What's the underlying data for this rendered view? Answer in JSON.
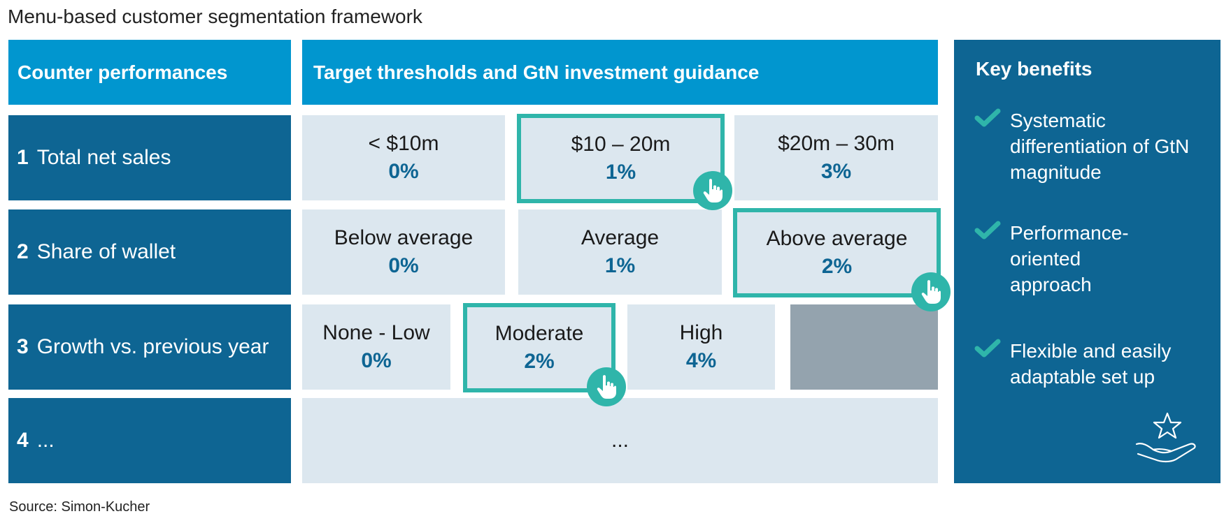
{
  "title": "Menu-based customer segmentation framework",
  "source": "Source: Simon-Kucher",
  "colors": {
    "header_blue": "#0196cf",
    "dark_blue": "#0e6593",
    "cell_bg": "#dce7ef",
    "teal_highlight": "#2fb5aa",
    "empty_cell": "#94a3ae"
  },
  "headers": {
    "left": "Counter performances",
    "middle": "Target thresholds and GtN investment guidance"
  },
  "rows": [
    {
      "number": "1",
      "label": "Total net sales",
      "options": [
        {
          "label": "< $10m",
          "pct": "0%",
          "selected": false
        },
        {
          "label": "$10 – 20m",
          "pct": "1%",
          "selected": true
        },
        {
          "label": "$20m – 30m",
          "pct": "3%",
          "selected": false
        }
      ]
    },
    {
      "number": "2",
      "label": "Share of wallet",
      "options": [
        {
          "label": "Below average",
          "pct": "0%",
          "selected": false
        },
        {
          "label": "Average",
          "pct": "1%",
          "selected": false
        },
        {
          "label": "Above average",
          "pct": "2%",
          "selected": true
        }
      ]
    },
    {
      "number": "3",
      "label": "Growth vs. previous year",
      "options": [
        {
          "label": "None - Low",
          "pct": "0%",
          "selected": false
        },
        {
          "label": "Moderate",
          "pct": "2%",
          "selected": true
        },
        {
          "label": "High",
          "pct": "4%",
          "selected": false
        }
      ]
    },
    {
      "number": "4",
      "label": "...",
      "options": [
        {
          "label": "...",
          "pct": "",
          "selected": false
        }
      ]
    }
  ],
  "benefits": {
    "title": "Key benefits",
    "items": [
      "Systematic differentiation of GtN magnitude",
      "Performance-oriented approach",
      "Flexible and easily adaptable set up"
    ]
  },
  "icons": {
    "selection": "hand-pointer-icon",
    "benefit": "checkmark-icon",
    "panel": "hand-holding-star-icon"
  }
}
